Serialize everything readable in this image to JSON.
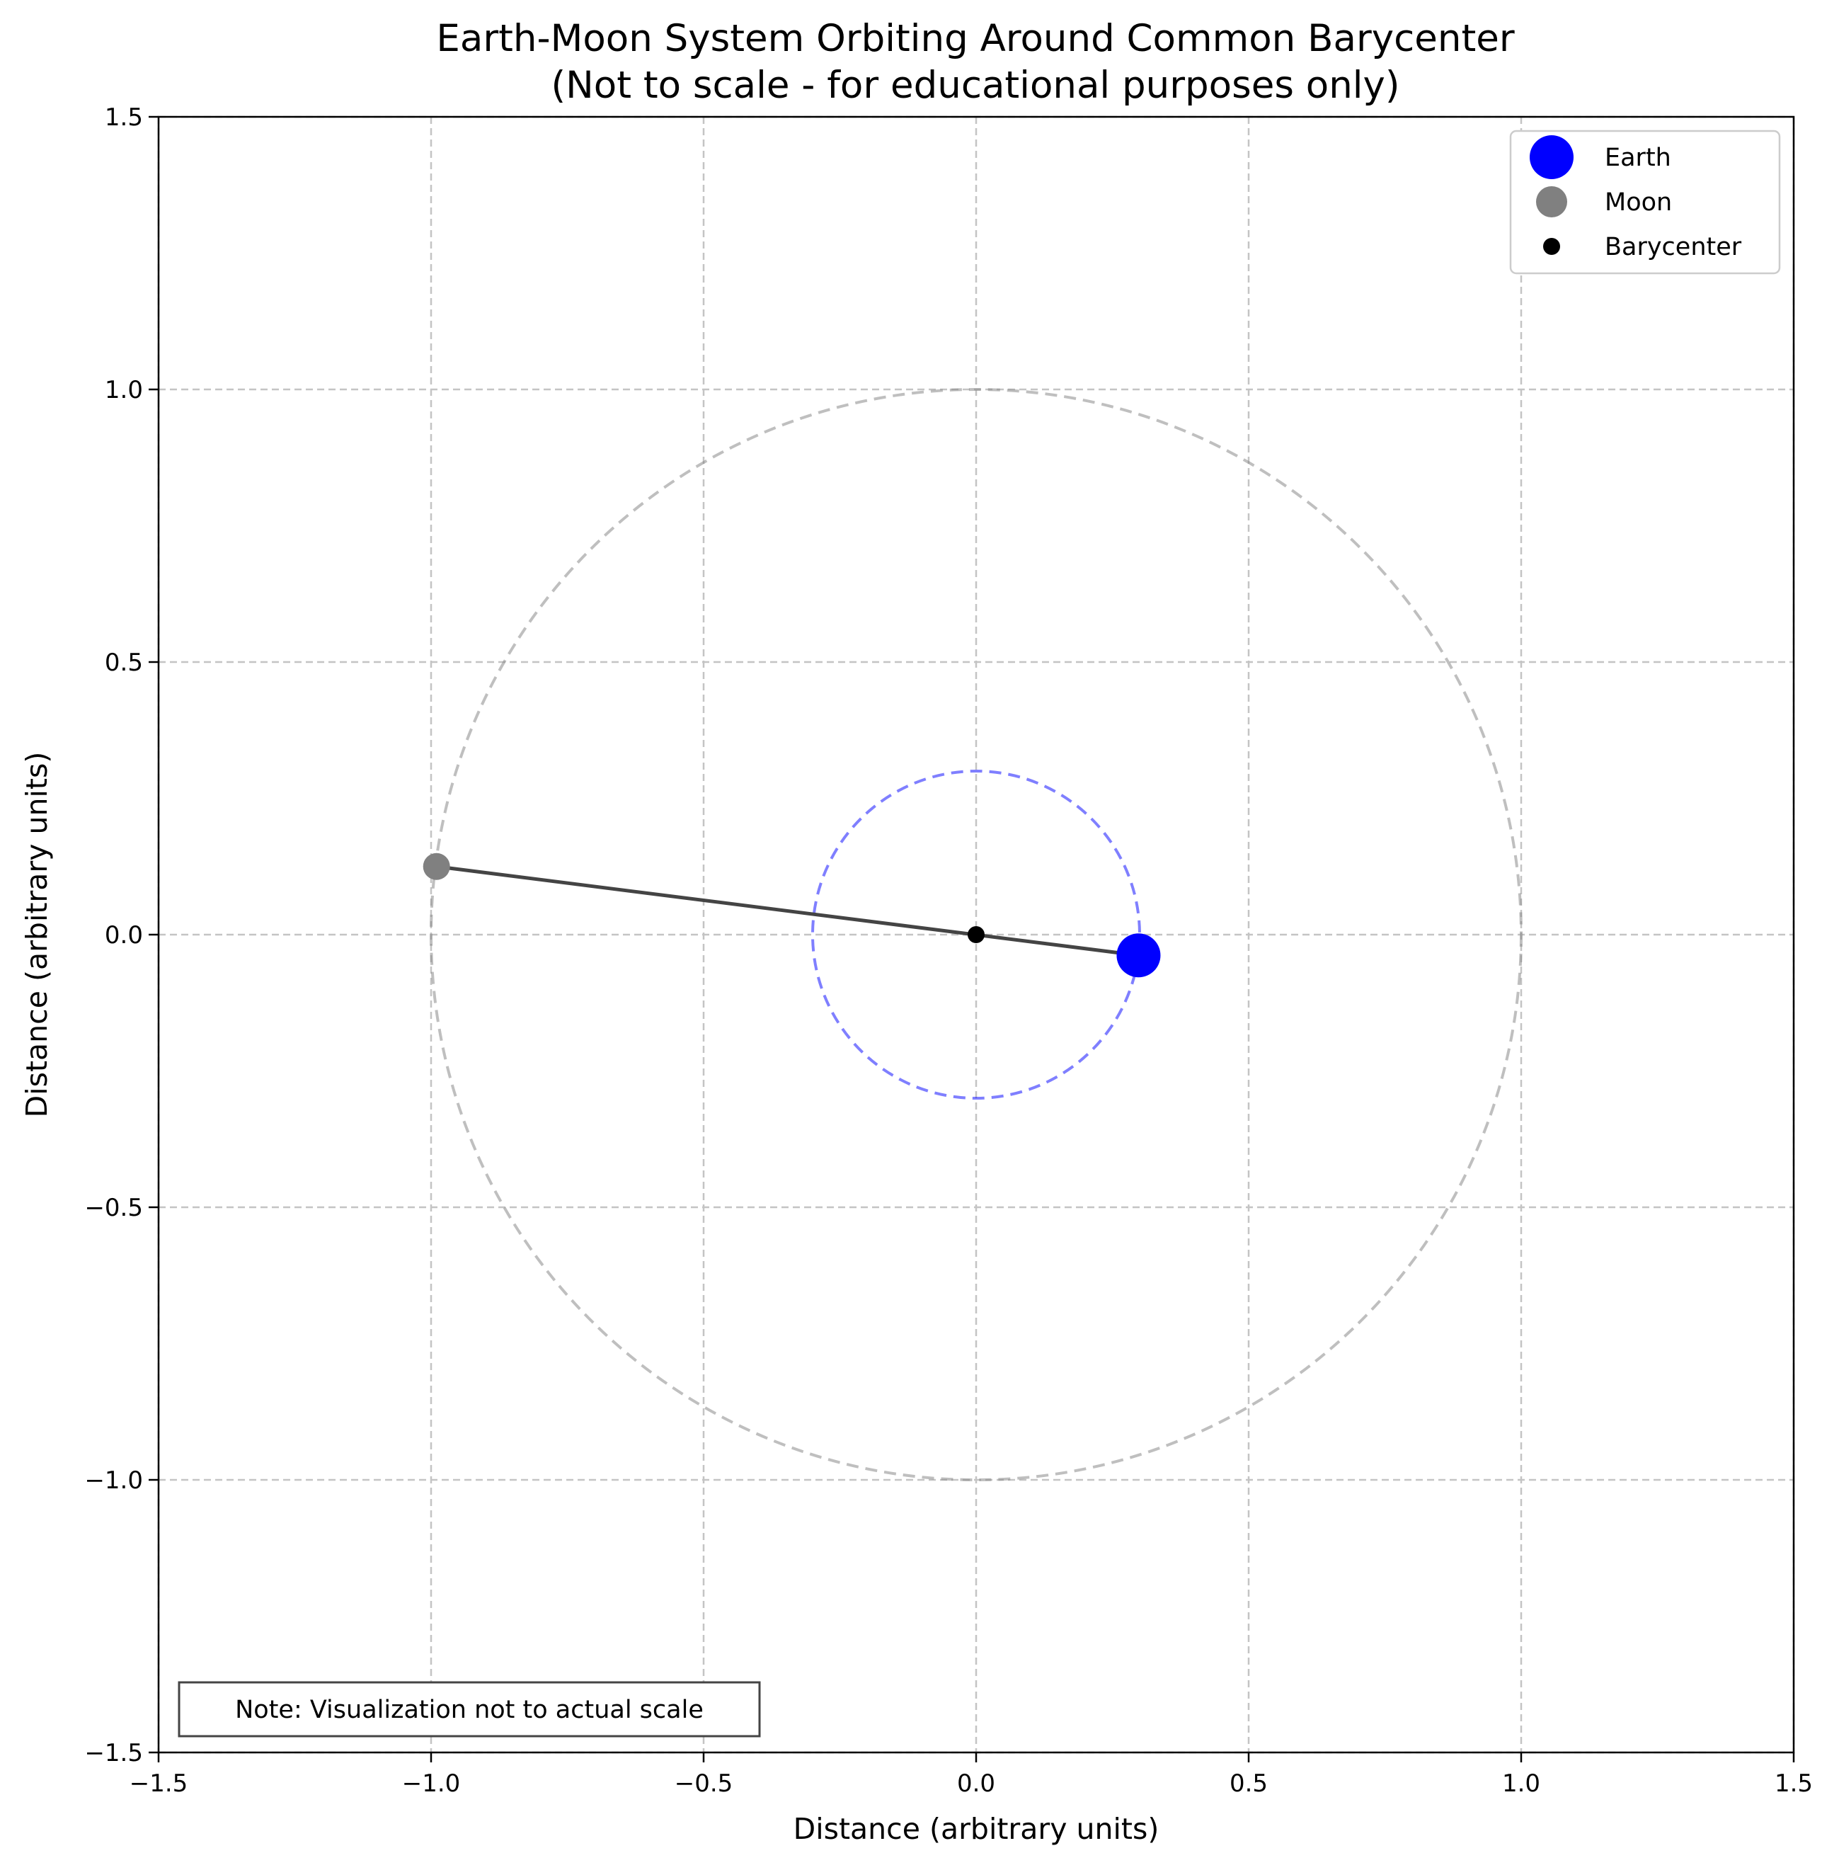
{
  "chart_data": {
    "type": "scatter",
    "title": "Earth-Moon System Orbiting Around Common Barycenter",
    "subtitle": "(Not to scale - for educational purposes only)",
    "xlabel": "Distance (arbitrary units)",
    "ylabel": "Distance (arbitrary units)",
    "xlim": [
      -1.5,
      1.5
    ],
    "ylim": [
      -1.5,
      1.5
    ],
    "xticks": [
      -1.5,
      -1.0,
      -0.5,
      0.0,
      0.5,
      1.0,
      1.5
    ],
    "yticks": [
      -1.5,
      -1.0,
      -0.5,
      0.0,
      0.5,
      1.0,
      1.5
    ],
    "xtick_labels": [
      "−1.5",
      "−1.0",
      "−0.5",
      "0.0",
      "0.5",
      "1.0",
      "1.5"
    ],
    "ytick_labels": [
      "−1.5",
      "−1.0",
      "−0.5",
      "0.0",
      "0.5",
      "1.0",
      "1.5"
    ],
    "grid": true,
    "legend_position": "top-right",
    "orbits": [
      {
        "body": "Moon",
        "radius": 1.0,
        "color": "#808080",
        "style": "dashed"
      },
      {
        "body": "Earth",
        "radius": 0.3,
        "color": "#0000ff",
        "style": "dashed"
      }
    ],
    "connector": {
      "from": [
        -0.99,
        0.125
      ],
      "to": [
        0.298,
        -0.038
      ],
      "color": "#444444"
    },
    "series": [
      {
        "name": "Earth",
        "x": 0.298,
        "y": -0.038,
        "color": "#0000ff"
      },
      {
        "name": "Moon",
        "x": -0.99,
        "y": 0.125,
        "color": "#808080"
      },
      {
        "name": "Barycenter",
        "x": 0.0,
        "y": 0.0,
        "color": "#000000"
      }
    ],
    "annotation": "Note: Visualization not to actual scale"
  }
}
